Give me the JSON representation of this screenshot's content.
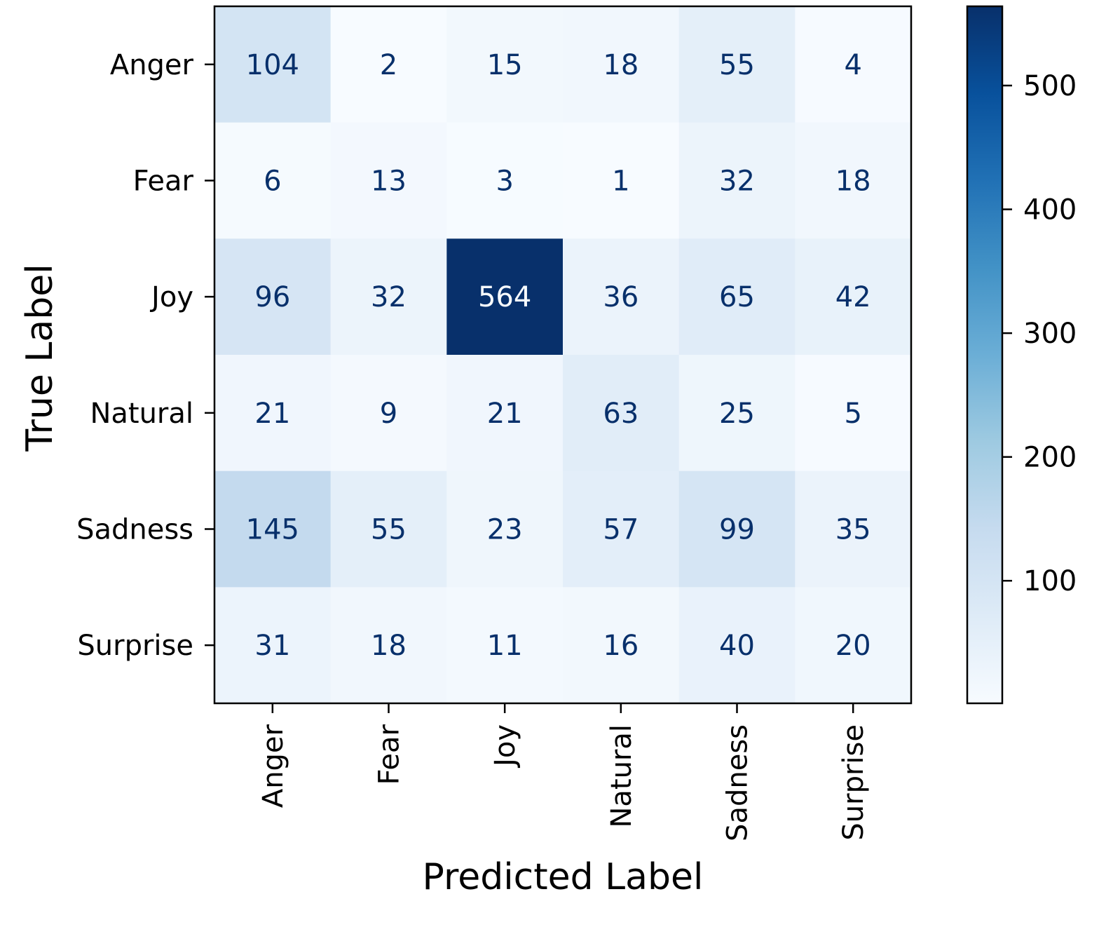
{
  "chart_data": {
    "type": "heatmap",
    "xlabel": "Predicted Label",
    "ylabel": "True Label",
    "x_categories": [
      "Anger",
      "Fear",
      "Joy",
      "Natural",
      "Sadness",
      "Surprise"
    ],
    "y_categories": [
      "Anger",
      "Fear",
      "Joy",
      "Natural",
      "Sadness",
      "Surprise"
    ],
    "values": [
      [
        104,
        2,
        15,
        18,
        55,
        4
      ],
      [
        6,
        13,
        3,
        1,
        32,
        18
      ],
      [
        96,
        32,
        564,
        36,
        65,
        42
      ],
      [
        21,
        9,
        21,
        63,
        25,
        5
      ],
      [
        145,
        55,
        23,
        57,
        99,
        35
      ],
      [
        31,
        18,
        11,
        16,
        40,
        20
      ]
    ],
    "colormap": "Blues",
    "colorbar": {
      "min": 1,
      "max": 564,
      "ticks": [
        100,
        200,
        300,
        400,
        500
      ],
      "tick_labels": [
        "100",
        "200",
        "300",
        "400",
        "500"
      ]
    },
    "grid": false
  }
}
